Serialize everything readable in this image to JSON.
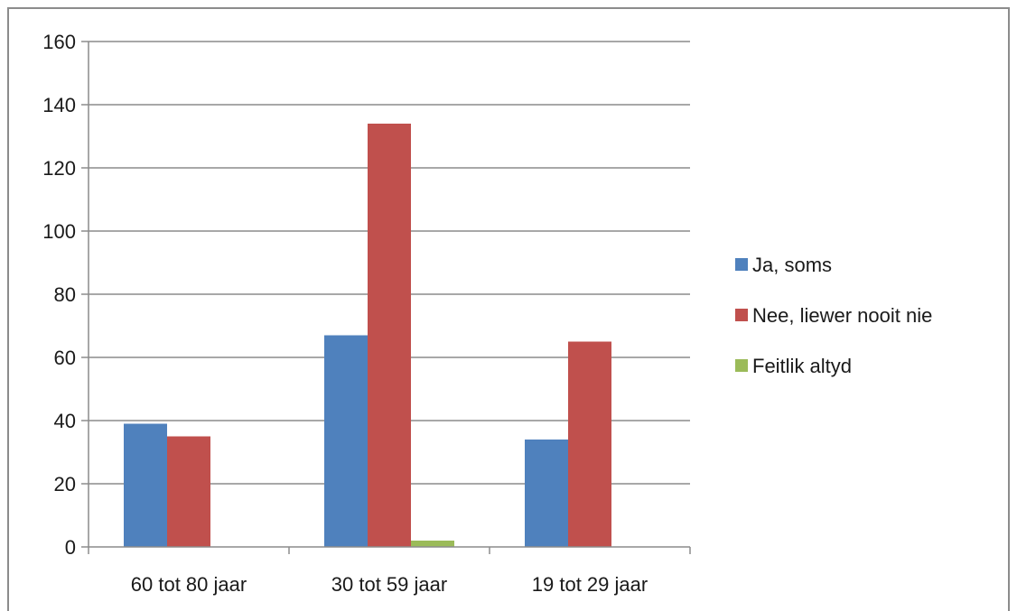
{
  "chart_data": {
    "type": "bar",
    "categories": [
      "60 tot 80 jaar",
      "30 tot 59 jaar",
      "19 tot 29 jaar"
    ],
    "series": [
      {
        "name": "Ja, soms",
        "color": "#4F81BD",
        "values": [
          39,
          67,
          34
        ]
      },
      {
        "name": "Nee, liewer nooit nie",
        "color": "#C0504D",
        "values": [
          35,
          134,
          65
        ]
      },
      {
        "name": "Feitlik altyd",
        "color": "#9BBB59",
        "values": [
          0,
          2,
          0
        ]
      }
    ],
    "ylim": [
      0,
      160
    ],
    "yticks": [
      0,
      20,
      40,
      60,
      80,
      100,
      120,
      140,
      160
    ],
    "grid": true,
    "legend_position": "right"
  }
}
